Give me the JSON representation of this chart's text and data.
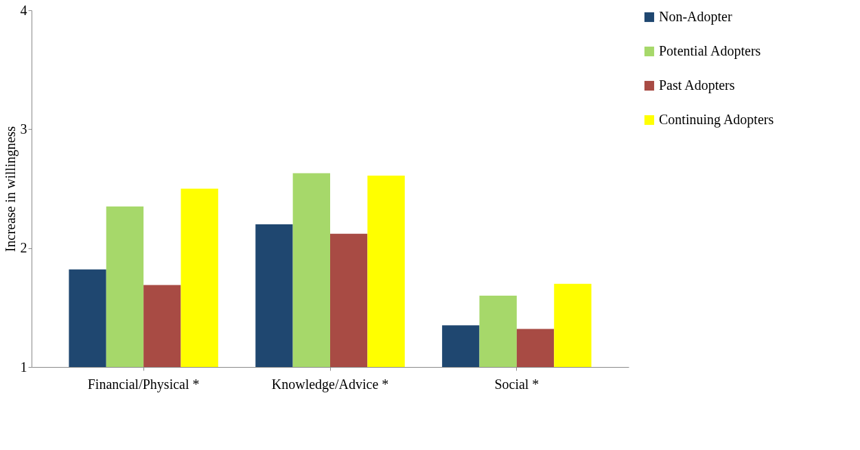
{
  "chart_data": {
    "type": "bar",
    "ylabel": "Increase in willingness",
    "categories": [
      "Financial/Physical *",
      "Knowledge/Advice *",
      "Social *"
    ],
    "series": [
      {
        "name": "Non-Adopter",
        "color": "#1f4770",
        "values": [
          1.82,
          2.2,
          1.35
        ]
      },
      {
        "name": "Potential Adopters",
        "color": "#a6d86a",
        "values": [
          2.35,
          2.63,
          1.6
        ]
      },
      {
        "name": "Past Adopters",
        "color": "#a84b44",
        "values": [
          1.69,
          2.12,
          1.32
        ]
      },
      {
        "name": "Continuing Adopters",
        "color": "#ffff00",
        "values": [
          2.5,
          2.61,
          1.7
        ]
      }
    ],
    "ylim": [
      1,
      4
    ],
    "yticks": [
      1,
      2,
      3,
      4
    ],
    "grid": false,
    "legend": "right"
  }
}
